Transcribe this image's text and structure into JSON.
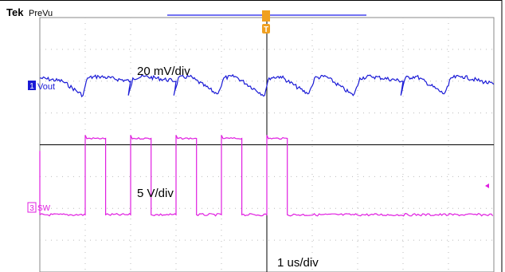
{
  "header": {
    "brand": "Tek",
    "mode": "PreVu"
  },
  "channels": [
    {
      "id": "1",
      "label": "Vout",
      "color": "#1a1ad6",
      "scale_text": "20 mV/div"
    },
    {
      "id": "3",
      "label": "SW",
      "color": "#e01ee0",
      "scale_text": "5 V/div"
    }
  ],
  "timebase_text": "1 us/div",
  "trigger": {
    "marker": "T",
    "color": "#f0a020"
  },
  "chart_data": {
    "type": "line",
    "title": "",
    "xlabel": "",
    "ylabel": "",
    "grid": true,
    "x_divisions": 10,
    "y_divisions": 8,
    "x_units": "div",
    "series": [
      {
        "name": "Vout",
        "units": "div",
        "x": [
          0.0,
          0.5,
          0.95,
          1.0,
          1.05,
          1.3,
          2.0,
          1.95,
          2.0,
          2.05,
          2.3,
          3.0,
          2.95,
          3.0,
          3.05,
          3.3,
          3.9,
          4.0,
          4.05,
          4.3,
          4.95,
          5.0,
          5.05,
          5.3,
          5.9,
          6.0,
          6.05,
          6.3,
          6.9,
          7.0,
          7.05,
          7.3,
          8.0,
          7.95,
          8.0,
          8.05,
          8.3,
          8.9,
          9.0,
          9.05,
          9.3,
          10.0
        ],
        "y": [
          6.1,
          6.0,
          5.55,
          5.85,
          6.1,
          6.15,
          6.0,
          5.55,
          5.8,
          6.1,
          6.15,
          6.0,
          5.55,
          5.8,
          6.1,
          6.15,
          5.6,
          5.85,
          6.1,
          6.15,
          5.55,
          5.85,
          6.1,
          6.15,
          5.6,
          5.85,
          6.1,
          6.15,
          5.55,
          5.85,
          6.1,
          6.15,
          6.0,
          5.55,
          5.85,
          6.1,
          6.15,
          5.6,
          5.85,
          6.1,
          6.15,
          5.9
        ]
      },
      {
        "name": "SW",
        "units": "div",
        "pulses_x": [
          1.0,
          2.0,
          3.0,
          4.0,
          5.0
        ],
        "pulse_width": 0.45,
        "low": 1.8,
        "high": 4.2
      }
    ]
  }
}
